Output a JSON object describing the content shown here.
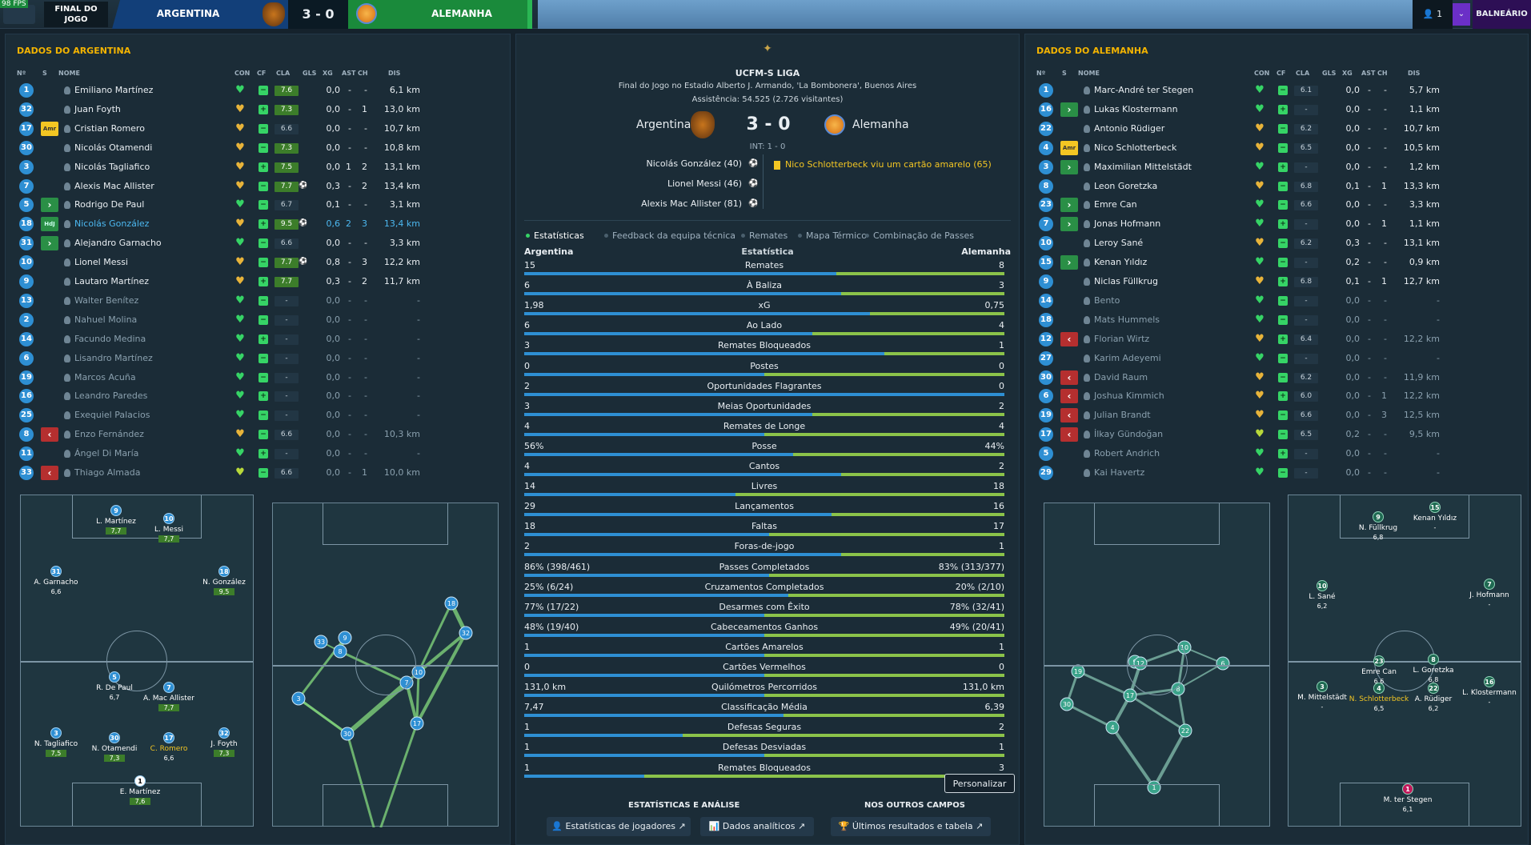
{
  "topbar": {
    "fps": "98 FPS",
    "final": "FINAL DO JOGO",
    "home": "ARGENTINA",
    "score": "3 - 0",
    "away": "ALEMANHA",
    "user": "👤 1",
    "menu": "⌄",
    "balneario": "BALNEÁRIO"
  },
  "left": {
    "title": "DADOS DO ARGENTINA",
    "headers": {
      "n": "Nº",
      "s": "S",
      "nome": "NOME",
      "con": "CON",
      "cf": "CF",
      "cla": "CLA",
      "gls": "GLS",
      "xg": "XG",
      "ast": "AST",
      "ch": "CH",
      "dis": "DIS"
    },
    "players": [
      {
        "n": "1",
        "s": "",
        "name": "Emiliano Martínez",
        "con": "green",
        "cla": "7.6",
        "g": true,
        "ball": false,
        "gls": "",
        "xg": "0,0",
        "ast": "-",
        "ch": "-",
        "dis": "6,1 km",
        "hl": false,
        "dim": false
      },
      {
        "n": "32",
        "s": "",
        "name": "Juan Foyth",
        "con": "gold",
        "cla": "7.3",
        "g": true,
        "ball": false,
        "gls": "",
        "xg": "0,0",
        "ast": "-",
        "ch": "1",
        "dis": "13,0 km",
        "hl": false,
        "dim": false
      },
      {
        "n": "17",
        "s": "amr",
        "name": "Cristian Romero",
        "con": "gold",
        "cla": "6.6",
        "g": false,
        "ball": false,
        "gls": "",
        "xg": "0,0",
        "ast": "-",
        "ch": "-",
        "dis": "10,7 km",
        "hl": false,
        "dim": false
      },
      {
        "n": "30",
        "s": "",
        "name": "Nicolás Otamendi",
        "con": "gold",
        "cla": "7.3",
        "g": true,
        "ball": false,
        "gls": "",
        "xg": "0,0",
        "ast": "-",
        "ch": "-",
        "dis": "10,8 km",
        "hl": false,
        "dim": false
      },
      {
        "n": "3",
        "s": "",
        "name": "Nicolás Tagliafico",
        "con": "gold",
        "cla": "7.5",
        "g": true,
        "ball": false,
        "gls": "",
        "xg": "0,0",
        "ast": "1",
        "ch": "2",
        "dis": "13,1 km",
        "hl": false,
        "dim": false
      },
      {
        "n": "7",
        "s": "",
        "name": "Alexis Mac Allister",
        "con": "gold",
        "cla": "7.7",
        "g": true,
        "ball": true,
        "gls": "",
        "xg": "0,3",
        "ast": "-",
        "ch": "2",
        "dis": "13,4 km",
        "hl": false,
        "dim": false
      },
      {
        "n": "5",
        "s": "in",
        "name": "Rodrigo De Paul",
        "con": "green",
        "cla": "6.7",
        "g": false,
        "ball": false,
        "gls": "",
        "xg": "0,1",
        "ast": "-",
        "ch": "-",
        "dis": "3,1 km",
        "hl": false,
        "dim": false
      },
      {
        "n": "18",
        "s": "hdj",
        "name": "Nicolás González",
        "con": "gold",
        "cla": "9.5",
        "g": true,
        "ball": true,
        "gls": "",
        "xg": "0,6",
        "ast": "2",
        "ch": "3",
        "dis": "13,4 km",
        "hl": true,
        "dim": false
      },
      {
        "n": "31",
        "s": "in",
        "name": "Alejandro Garnacho",
        "con": "green",
        "cla": "6.6",
        "g": false,
        "ball": false,
        "gls": "",
        "xg": "0,0",
        "ast": "-",
        "ch": "-",
        "dis": "3,3 km",
        "hl": false,
        "dim": false
      },
      {
        "n": "10",
        "s": "",
        "name": "Lionel Messi",
        "con": "gold",
        "cla": "7.7",
        "g": true,
        "ball": true,
        "gls": "",
        "xg": "0,8",
        "ast": "-",
        "ch": "3",
        "dis": "12,2 km",
        "hl": false,
        "dim": false
      },
      {
        "n": "9",
        "s": "",
        "name": "Lautaro Martínez",
        "con": "gold",
        "cla": "7.7",
        "g": true,
        "ball": false,
        "gls": "",
        "xg": "0,3",
        "ast": "-",
        "ch": "2",
        "dis": "11,7 km",
        "hl": false,
        "dim": false
      },
      {
        "n": "13",
        "s": "",
        "name": "Walter Benítez",
        "con": "green",
        "cla": "-",
        "g": false,
        "ball": false,
        "gls": "",
        "xg": "0,0",
        "ast": "-",
        "ch": "-",
        "dis": "-",
        "hl": false,
        "dim": true
      },
      {
        "n": "2",
        "s": "",
        "name": "Nahuel Molina",
        "con": "green",
        "cla": "-",
        "g": false,
        "ball": false,
        "gls": "",
        "xg": "0,0",
        "ast": "-",
        "ch": "-",
        "dis": "-",
        "hl": false,
        "dim": true
      },
      {
        "n": "14",
        "s": "",
        "name": "Facundo Medina",
        "con": "green",
        "cla": "-",
        "g": false,
        "ball": false,
        "gls": "",
        "xg": "0,0",
        "ast": "-",
        "ch": "-",
        "dis": "-",
        "hl": false,
        "dim": true
      },
      {
        "n": "6",
        "s": "",
        "name": "Lisandro Martínez",
        "con": "green",
        "cla": "-",
        "g": false,
        "ball": false,
        "gls": "",
        "xg": "0,0",
        "ast": "-",
        "ch": "-",
        "dis": "-",
        "hl": false,
        "dim": true
      },
      {
        "n": "19",
        "s": "",
        "name": "Marcos Acuña",
        "con": "green",
        "cla": "-",
        "g": false,
        "ball": false,
        "gls": "",
        "xg": "0,0",
        "ast": "-",
        "ch": "-",
        "dis": "-",
        "hl": false,
        "dim": true
      },
      {
        "n": "16",
        "s": "",
        "name": "Leandro Paredes",
        "con": "green",
        "cla": "-",
        "g": false,
        "ball": false,
        "gls": "",
        "xg": "0,0",
        "ast": "-",
        "ch": "-",
        "dis": "-",
        "hl": false,
        "dim": true
      },
      {
        "n": "25",
        "s": "",
        "name": "Exequiel Palacios",
        "con": "green",
        "cla": "-",
        "g": false,
        "ball": false,
        "gls": "",
        "xg": "0,0",
        "ast": "-",
        "ch": "-",
        "dis": "-",
        "hl": false,
        "dim": true
      },
      {
        "n": "8",
        "s": "out",
        "name": "Enzo Fernández",
        "con": "gold",
        "cla": "6.6",
        "g": false,
        "ball": false,
        "gls": "",
        "xg": "0,0",
        "ast": "-",
        "ch": "-",
        "dis": "10,3 km",
        "hl": false,
        "dim": true
      },
      {
        "n": "11",
        "s": "",
        "name": "Ángel Di María",
        "con": "green",
        "cla": "-",
        "g": false,
        "ball": false,
        "gls": "",
        "xg": "0,0",
        "ast": "-",
        "ch": "-",
        "dis": "-",
        "hl": false,
        "dim": true
      },
      {
        "n": "33",
        "s": "out",
        "name": "Thiago Almada",
        "con": "lime",
        "cla": "6.6",
        "g": false,
        "ball": false,
        "gls": "",
        "xg": "0,0",
        "ast": "-",
        "ch": "1",
        "dis": "10,0 km",
        "hl": false,
        "dim": true
      }
    ]
  },
  "right": {
    "title": "DADOS DO ALEMANHA",
    "headers": {
      "n": "Nº",
      "s": "S",
      "nome": "NOME",
      "con": "CON",
      "cf": "CF",
      "cla": "CLA",
      "gls": "GLS",
      "xg": "XG",
      "ast": "AST",
      "ch": "CH",
      "dis": "DIS"
    },
    "players": [
      {
        "n": "1",
        "s": "",
        "name": "Marc-André ter Stegen",
        "con": "green",
        "cla": "6.1",
        "g": false,
        "xg": "0,0",
        "ast": "-",
        "ch": "-",
        "dis": "5,7 km",
        "dim": false
      },
      {
        "n": "16",
        "s": "in",
        "name": "Lukas Klostermann",
        "con": "green",
        "cla": "-",
        "g": false,
        "xg": "0,0",
        "ast": "-",
        "ch": "-",
        "dis": "1,1 km",
        "dim": false
      },
      {
        "n": "22",
        "s": "",
        "name": "Antonio Rüdiger",
        "con": "gold",
        "cla": "6.2",
        "g": false,
        "xg": "0,0",
        "ast": "-",
        "ch": "-",
        "dis": "10,7 km",
        "dim": false
      },
      {
        "n": "4",
        "s": "amr",
        "name": "Nico Schlotterbeck",
        "con": "gold",
        "cla": "6.5",
        "g": false,
        "xg": "0,0",
        "ast": "-",
        "ch": "-",
        "dis": "10,5 km",
        "dim": false
      },
      {
        "n": "3",
        "s": "in",
        "name": "Maximilian Mittelstädt",
        "con": "green",
        "cla": "-",
        "g": false,
        "xg": "0,0",
        "ast": "-",
        "ch": "-",
        "dis": "1,2 km",
        "dim": false
      },
      {
        "n": "8",
        "s": "",
        "name": "Leon Goretzka",
        "con": "gold",
        "cla": "6.8",
        "g": false,
        "xg": "0,1",
        "ast": "-",
        "ch": "1",
        "dis": "13,3 km",
        "dim": false
      },
      {
        "n": "23",
        "s": "in",
        "name": "Emre Can",
        "con": "green",
        "cla": "6.6",
        "g": false,
        "xg": "0,0",
        "ast": "-",
        "ch": "-",
        "dis": "3,3 km",
        "dim": false
      },
      {
        "n": "7",
        "s": "in",
        "name": "Jonas Hofmann",
        "con": "green",
        "cla": "-",
        "g": false,
        "xg": "0,0",
        "ast": "-",
        "ch": "1",
        "dis": "1,1 km",
        "dim": false
      },
      {
        "n": "10",
        "s": "",
        "name": "Leroy Sané",
        "con": "gold",
        "cla": "6.2",
        "g": false,
        "xg": "0,3",
        "ast": "-",
        "ch": "-",
        "dis": "13,1 km",
        "dim": false
      },
      {
        "n": "15",
        "s": "in",
        "name": "Kenan Yıldız",
        "con": "green",
        "cla": "-",
        "g": false,
        "xg": "0,2",
        "ast": "-",
        "ch": "-",
        "dis": "0,9 km",
        "dim": false
      },
      {
        "n": "9",
        "s": "",
        "name": "Niclas Füllkrug",
        "con": "gold",
        "cla": "6.8",
        "g": false,
        "xg": "0,1",
        "ast": "-",
        "ch": "1",
        "dis": "12,7 km",
        "dim": false
      },
      {
        "n": "14",
        "s": "",
        "name": "Bento",
        "con": "green",
        "cla": "-",
        "g": false,
        "xg": "0,0",
        "ast": "-",
        "ch": "-",
        "dis": "-",
        "dim": true
      },
      {
        "n": "18",
        "s": "",
        "name": "Mats Hummels",
        "con": "green",
        "cla": "-",
        "g": false,
        "xg": "0,0",
        "ast": "-",
        "ch": "-",
        "dis": "-",
        "dim": true
      },
      {
        "n": "12",
        "s": "out",
        "name": "Florian Wirtz",
        "con": "gold",
        "cla": "6.4",
        "g": false,
        "xg": "0,0",
        "ast": "-",
        "ch": "-",
        "dis": "12,2 km",
        "dim": true
      },
      {
        "n": "27",
        "s": "",
        "name": "Karim Adeyemi",
        "con": "green",
        "cla": "-",
        "g": false,
        "xg": "0,0",
        "ast": "-",
        "ch": "-",
        "dis": "-",
        "dim": true
      },
      {
        "n": "30",
        "s": "out",
        "name": "David Raum",
        "con": "gold",
        "cla": "6.2",
        "g": false,
        "xg": "0,0",
        "ast": "-",
        "ch": "-",
        "dis": "11,9 km",
        "dim": true
      },
      {
        "n": "6",
        "s": "out",
        "name": "Joshua Kimmich",
        "con": "gold",
        "cla": "6.0",
        "g": false,
        "xg": "0,0",
        "ast": "-",
        "ch": "1",
        "dis": "12,2 km",
        "dim": true
      },
      {
        "n": "19",
        "s": "out",
        "name": "Julian Brandt",
        "con": "gold",
        "cla": "6.6",
        "g": false,
        "xg": "0,0",
        "ast": "-",
        "ch": "3",
        "dis": "12,5 km",
        "dim": true
      },
      {
        "n": "17",
        "s": "out",
        "name": "İlkay Gündoğan",
        "con": "lime",
        "cla": "6.5",
        "g": false,
        "xg": "0,2",
        "ast": "-",
        "ch": "-",
        "dis": "9,5 km",
        "dim": true
      },
      {
        "n": "5",
        "s": "",
        "name": "Robert Andrich",
        "con": "green",
        "cla": "-",
        "g": false,
        "xg": "0,0",
        "ast": "-",
        "ch": "-",
        "dis": "-",
        "dim": true
      },
      {
        "n": "29",
        "s": "",
        "name": "Kai Havertz",
        "con": "green",
        "cla": "-",
        "g": false,
        "xg": "0,0",
        "ast": "-",
        "ch": "-",
        "dis": "-",
        "dim": true
      }
    ]
  },
  "match": {
    "league": "UCFM-S LIGA",
    "venue": "Final do Jogo no Estadio Alberto J. Armando, 'La Bombonera', Buenos Aires",
    "attendance": "Assistência: 54.525 (2.726 visitantes)",
    "home": "Argentina",
    "away": "Alemanha",
    "score": "3 - 0",
    "ht": "INT: 1 - 0",
    "scorers": [
      "Nicolás González (40)",
      "Lionel Messi (46)",
      "Alexis Mac Allister (81)"
    ],
    "card": "Nico Schlotterbeck viu um cartão amarelo (65)"
  },
  "tabs": [
    "Estatísticas",
    "Feedback da equipa técnica",
    "Remates",
    "Mapa Térmico",
    "Combinação de Passes"
  ],
  "stats_header": {
    "home": "Argentina",
    "mid": "Estatística",
    "away": "Alemanha"
  },
  "stats": [
    {
      "l": "15",
      "label": "Remates",
      "r": "8",
      "lf": 0.65
    },
    {
      "l": "6",
      "label": "À Baliza",
      "r": "3",
      "lf": 0.66
    },
    {
      "l": "1,98",
      "label": "xG",
      "r": "0,75",
      "lf": 0.72
    },
    {
      "l": "6",
      "label": "Ao Lado",
      "r": "4",
      "lf": 0.6
    },
    {
      "l": "3",
      "label": "Remates Bloqueados",
      "r": "1",
      "lf": 0.75
    },
    {
      "l": "0",
      "label": "Postes",
      "r": "0",
      "lf": 0.5
    },
    {
      "l": "2",
      "label": "Oportunidades Flagrantes",
      "r": "0",
      "lf": 1.0
    },
    {
      "l": "3",
      "label": "Meias Oportunidades",
      "r": "2",
      "lf": 0.6
    },
    {
      "l": "4",
      "label": "Remates de Longe",
      "r": "4",
      "lf": 0.5
    },
    {
      "l": "56%",
      "label": "Posse",
      "r": "44%",
      "lf": 0.56
    },
    {
      "l": "4",
      "label": "Cantos",
      "r": "2",
      "lf": 0.66
    },
    {
      "l": "14",
      "label": "Livres",
      "r": "18",
      "lf": 0.44
    },
    {
      "l": "29",
      "label": "Lançamentos",
      "r": "16",
      "lf": 0.64
    },
    {
      "l": "18",
      "label": "Faltas",
      "r": "17",
      "lf": 0.51
    },
    {
      "l": "2",
      "label": "Foras-de-jogo",
      "r": "1",
      "lf": 0.66
    },
    {
      "l": "86% (398/461)",
      "label": "Passes Completados",
      "r": "83% (313/377)",
      "lf": 0.51
    },
    {
      "l": "25% (6/24)",
      "label": "Cruzamentos Completados",
      "r": "20% (2/10)",
      "lf": 0.55
    },
    {
      "l": "77% (17/22)",
      "label": "Desarmes com Êxito",
      "r": "78% (32/41)",
      "lf": 0.5
    },
    {
      "l": "48% (19/40)",
      "label": "Cabeceamentos Ganhos",
      "r": "49% (20/41)",
      "lf": 0.5
    },
    {
      "l": "1",
      "label": "Cartões Amarelos",
      "r": "1",
      "lf": 0.5
    },
    {
      "l": "0",
      "label": "Cartões Vermelhos",
      "r": "0",
      "lf": 0.5
    },
    {
      "l": "131,0 km",
      "label": "Quilómetros Percorridos",
      "r": "131,0 km",
      "lf": 0.5
    },
    {
      "l": "7,47",
      "label": "Classificação Média",
      "r": "6,39",
      "lf": 0.54
    },
    {
      "l": "1",
      "label": "Defesas Seguras",
      "r": "2",
      "lf": 0.33
    },
    {
      "l": "1",
      "label": "Defesas Desviadas",
      "r": "1",
      "lf": 0.5
    },
    {
      "l": "1",
      "label": "Remates Bloqueados",
      "r": "3",
      "lf": 0.25
    }
  ],
  "bottom": {
    "personalizar": "Personalizar",
    "sec1": "ESTATÍSTICAS E ANÁLISE",
    "sec2": "NOS OUTROS CAMPOS",
    "b1": "👤 Estatísticas de jogadores ↗",
    "b2": "📊 Dados analíticos ↗",
    "b3": "🏆 Últimos resultados e tabela ↗"
  },
  "arg_formation": [
    {
      "n": "9",
      "name": "L. Martínez",
      "r": "7,7",
      "g": true
    },
    {
      "n": "10",
      "name": "L. Messi",
      "r": "7,7",
      "g": true
    },
    {
      "n": "31",
      "name": "A. Garnacho",
      "r": "6,6",
      "g": false
    },
    {
      "n": "18",
      "name": "N. González",
      "r": "9,5",
      "g": true
    },
    {
      "n": "5",
      "name": "R. De Paul",
      "r": "6,7",
      "g": false
    },
    {
      "n": "7",
      "name": "A. Mac Allister",
      "r": "7,7",
      "g": true
    },
    {
      "n": "3",
      "name": "N. Tagliafico",
      "r": "7,5",
      "g": true
    },
    {
      "n": "30",
      "name": "N. Otamendi",
      "r": "7,3",
      "g": true
    },
    {
      "n": "17",
      "name": "C. Romero",
      "r": "6,6",
      "g": false
    },
    {
      "n": "32",
      "name": "J. Foyth",
      "r": "7,3",
      "g": true
    },
    {
      "n": "1",
      "name": "E. Martínez",
      "r": "7,6",
      "g": true
    }
  ],
  "ger_formation": [
    {
      "n": "9",
      "name": "N. Füllkrug",
      "r": "6,8"
    },
    {
      "n": "15",
      "name": "Kenan Yıldız",
      "r": "-"
    },
    {
      "n": "10",
      "name": "L. Sané",
      "r": "6,2"
    },
    {
      "n": "7",
      "name": "J. Hofmann",
      "r": "-"
    },
    {
      "n": "23",
      "name": "Emre Can",
      "r": "6,6"
    },
    {
      "n": "8",
      "name": "L. Goretzka",
      "r": "6,8"
    },
    {
      "n": "3",
      "name": "M. Mittelstädt",
      "r": "-"
    },
    {
      "n": "4",
      "name": "N. Schlotterbeck",
      "r": "6,5"
    },
    {
      "n": "22",
      "name": "A. Rüdiger",
      "r": "6,2"
    },
    {
      "n": "16",
      "name": "L. Klostermann",
      "r": "-"
    },
    {
      "n": "1",
      "name": "M. ter Stegen",
      "r": "6,1"
    }
  ],
  "colors": {
    "home": "#2e8fd3",
    "away": "#8bc34a",
    "accent": "#f4b400"
  }
}
